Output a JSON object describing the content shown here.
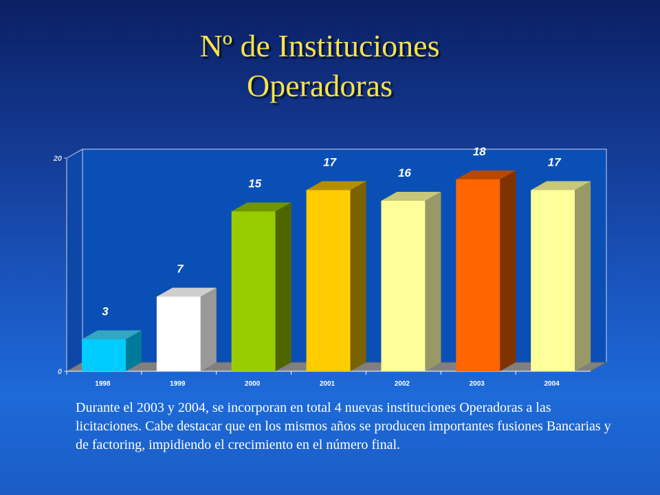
{
  "slide": {
    "title_line1": "Nº de Instituciones",
    "title_line2": "Operadoras",
    "note": "Durante el 2003 y 2004, se incorporan en total 4 nuevas instituciones Operadoras a las licitaciones. Cabe destacar que en los mismos años se producen importantes fusiones Bancarias y de factoring, impidiendo el crecimiento en el  número final."
  },
  "chart_data": {
    "type": "bar",
    "title": "",
    "xlabel": "",
    "ylabel": "",
    "categories": [
      "1998",
      "1999",
      "2000",
      "2001",
      "2002",
      "2003",
      "2004"
    ],
    "values": [
      3,
      7,
      15,
      17,
      16,
      18,
      17
    ],
    "ylim": [
      0,
      20
    ],
    "yticks": [
      0,
      20
    ],
    "grid": false,
    "legend": "none",
    "bar_colors": [
      {
        "front": "#00ccff",
        "top": "#33a6c4",
        "side": "#007a99"
      },
      {
        "front": "#ffffff",
        "top": "#cfcfcf",
        "side": "#999999"
      },
      {
        "front": "#99cc00",
        "top": "#6f9600",
        "side": "#4f6600"
      },
      {
        "front": "#ffcc00",
        "top": "#b38f00",
        "side": "#7a6200"
      },
      {
        "front": "#ffff99",
        "top": "#c7c77a",
        "side": "#999966"
      },
      {
        "front": "#ff6600",
        "top": "#b84a00",
        "side": "#803300"
      },
      {
        "front": "#ffff99",
        "top": "#c7c77a",
        "side": "#999966"
      }
    ],
    "label_color": "#ffffff",
    "plot_background": "#0a4fb5",
    "floor_color": "#808080"
  }
}
